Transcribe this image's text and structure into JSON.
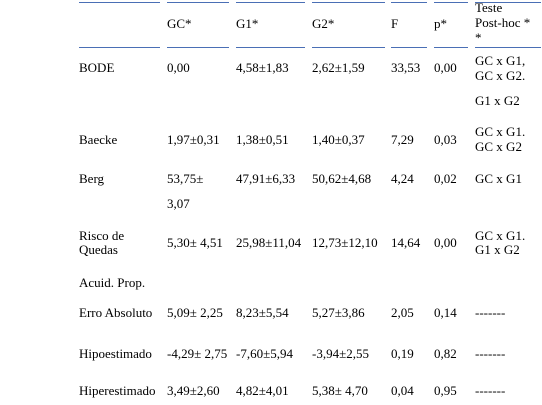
{
  "table": {
    "header": [
      "GC*",
      "G1*",
      "G2*",
      "F",
      "p*",
      [
        "Teste",
        "Post-hoc *",
        "*"
      ]
    ],
    "rows": [
      [
        [
          "BODE"
        ],
        [
          "0,00"
        ],
        [
          "4,58±1,83"
        ],
        [
          "2,62±1,59"
        ],
        [
          "33,53"
        ],
        [
          "0,00"
        ],
        [
          "GC x G1,",
          "GC x G2.",
          "G1 x G2"
        ]
      ],
      [
        [
          "Baecke"
        ],
        [
          "1,97±0,31"
        ],
        [
          "1,38±0,51"
        ],
        [
          "1,40±0,37"
        ],
        [
          "7,29"
        ],
        [
          "0,03"
        ],
        [
          "GC x G1.",
          "GC x G2"
        ]
      ],
      [
        [
          "Berg"
        ],
        [
          "53,75±",
          "3,07"
        ],
        [
          "47,91±6,33"
        ],
        [
          "50,62±4,68"
        ],
        [
          "4,24"
        ],
        [
          "0,02"
        ],
        [
          "GC x G1"
        ]
      ],
      [
        [
          "Risco de",
          "Quedas"
        ],
        [
          "5,30± 4,51"
        ],
        [
          "25,98±11,04"
        ],
        [
          "12,73±12,10"
        ],
        [
          "14,64"
        ],
        [
          "0,00"
        ],
        [
          "GC x G1.",
          "G1 x G2"
        ]
      ],
      [
        [
          "Acuid. Prop."
        ]
      ],
      [
        [
          "Erro Absoluto"
        ],
        [
          "5,09± 2,25"
        ],
        [
          "8,23±5,54"
        ],
        [
          "5,27±3,86"
        ],
        [
          "2,05"
        ],
        [
          "0,14"
        ],
        [
          "-------"
        ]
      ],
      [
        [
          "Hipoestimado"
        ],
        [
          "-4,29± 2,75"
        ],
        [
          "-7,60±5,94"
        ],
        [
          "-3,94±2,55"
        ],
        [
          "0,19"
        ],
        [
          "0,82"
        ],
        [
          "-------"
        ]
      ],
      [
        [
          "Hiperestimado"
        ],
        [
          "3,49±2,60"
        ],
        [
          "4,82±4,01"
        ],
        [
          "5,38± 4,70"
        ],
        [
          "0,04"
        ],
        [
          "0,95"
        ],
        [
          "-------"
        ]
      ]
    ]
  }
}
